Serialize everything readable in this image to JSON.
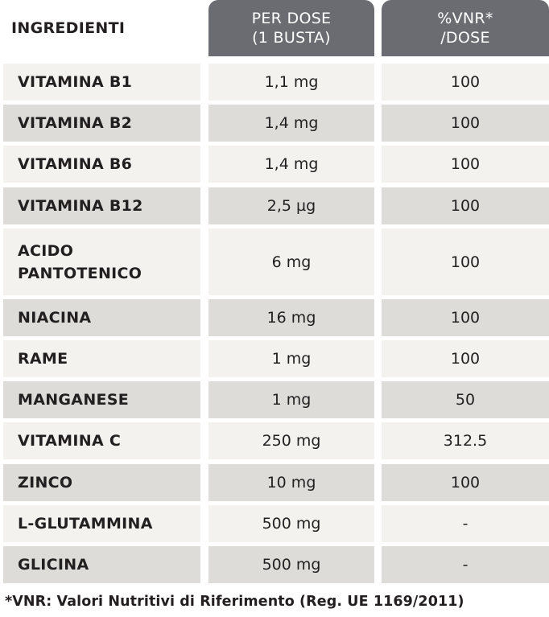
{
  "table": {
    "header": {
      "ingredients": "INGREDIENTI",
      "dose_line1": "PER DOSE",
      "dose_line2": "(1 BUSTA)",
      "vnr_line1": "%VNR*",
      "vnr_line2": "/DOSE"
    },
    "rows": [
      {
        "name": "VITAMINA B1",
        "dose": "1,1 mg",
        "vnr": "100"
      },
      {
        "name": "VITAMINA B2",
        "dose": "1,4 mg",
        "vnr": "100"
      },
      {
        "name": "VITAMINA B6",
        "dose": "1,4 mg",
        "vnr": "100"
      },
      {
        "name": "VITAMINA B12",
        "dose": "2,5 µg",
        "vnr": "100"
      },
      {
        "name_line1": "ACIDO",
        "name_line2": "PANTOTENICO",
        "dose": "6 mg",
        "vnr": "100"
      },
      {
        "name": "NIACINA",
        "dose": "16 mg",
        "vnr": "100"
      },
      {
        "name": "RAME",
        "dose": "1 mg",
        "vnr": "100"
      },
      {
        "name": "MANGANESE",
        "dose": "1 mg",
        "vnr": "50"
      },
      {
        "name": "VITAMINA C",
        "dose": "250 mg",
        "vnr": "312.5"
      },
      {
        "name": "ZINCO",
        "dose": "10 mg",
        "vnr": "100"
      },
      {
        "name": "L-GLUTAMMINA",
        "dose": "500 mg",
        "vnr": "-"
      },
      {
        "name": "GLICINA",
        "dose": "500 mg",
        "vnr": "-"
      }
    ],
    "footnote": "*VNR: Valori Nutritivi di Riferimento (Reg. UE 1169/2011)"
  },
  "colors": {
    "header_bg": "#6b6c72",
    "row_light": "#f3f2ef",
    "row_dark": "#dddcd9",
    "text": "#231f20"
  }
}
